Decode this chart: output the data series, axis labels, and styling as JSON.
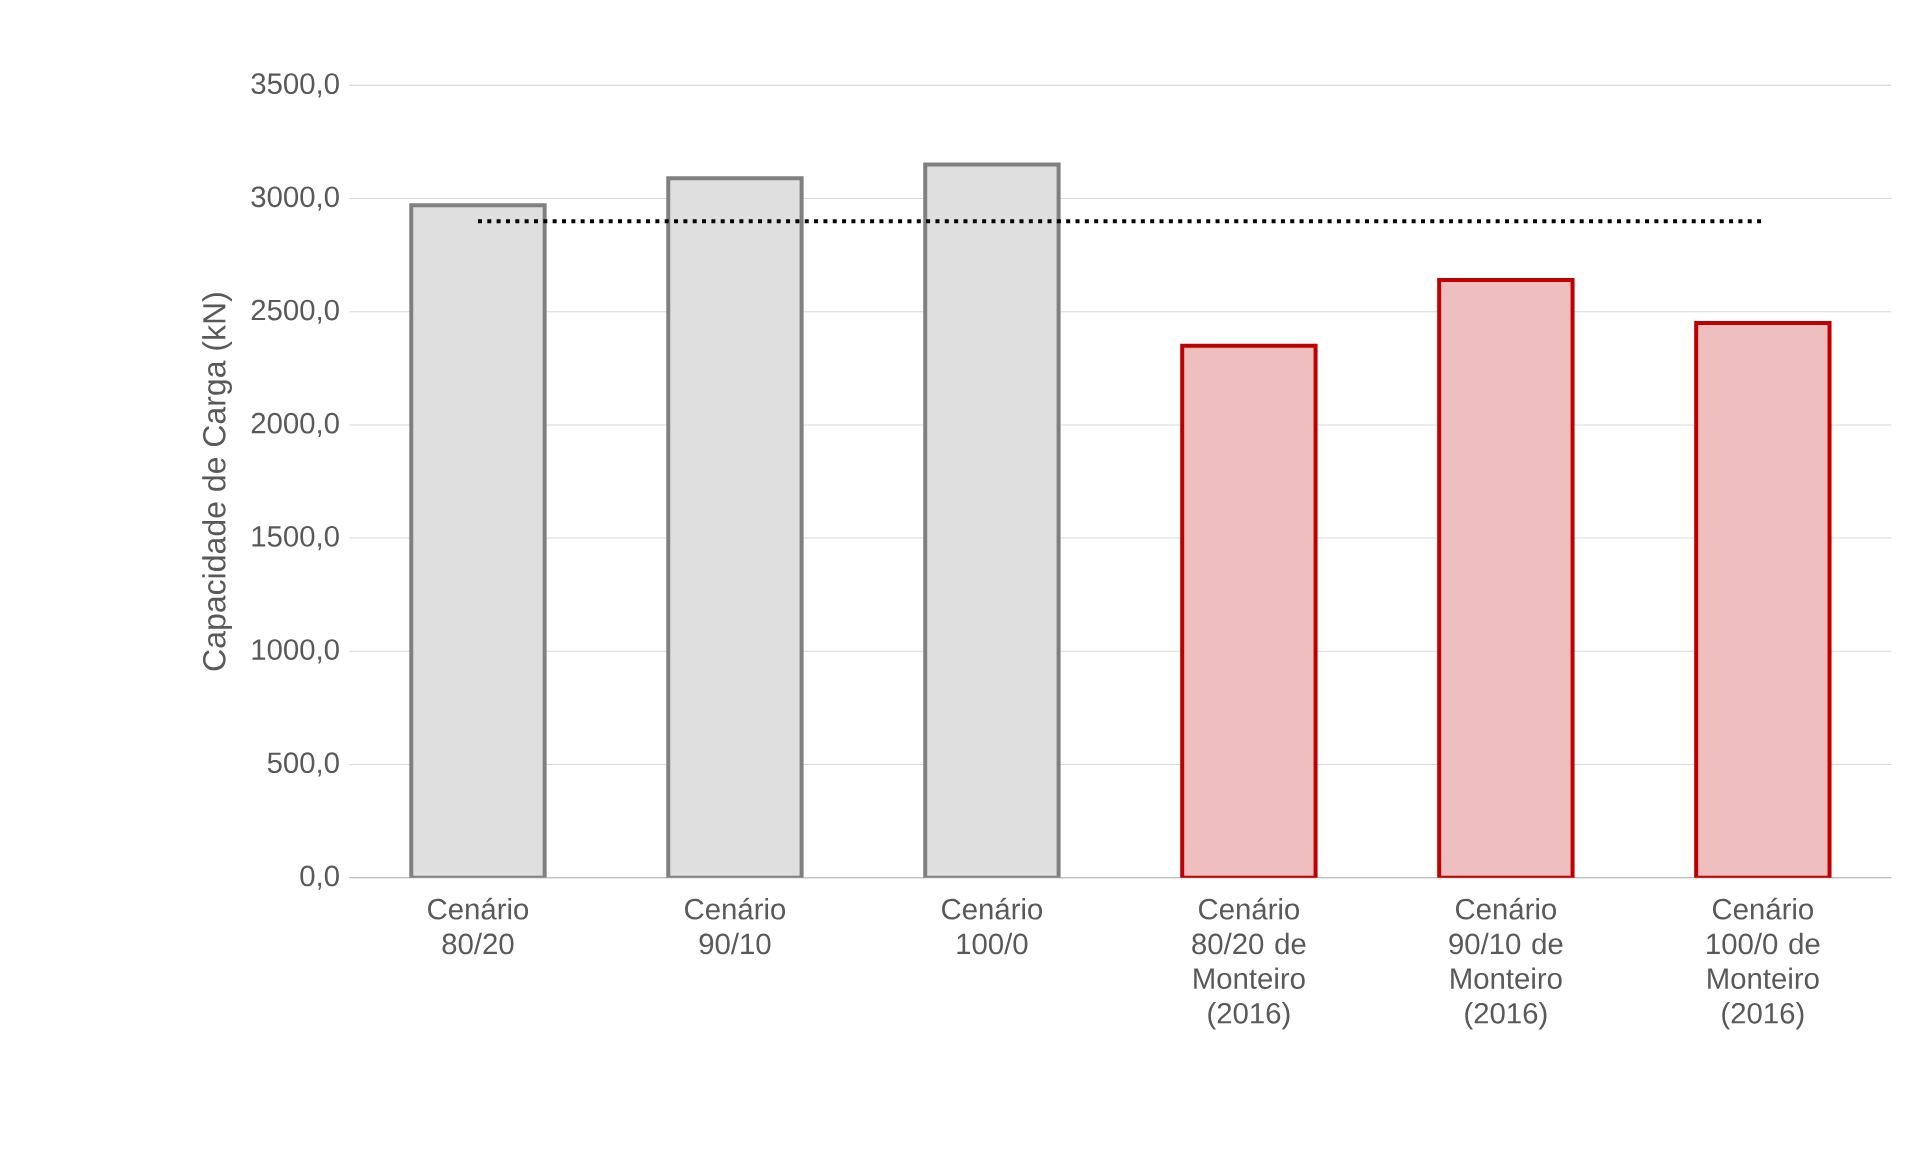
{
  "chart_data": {
    "type": "bar",
    "ylabel": "Capacidade de Carga (kN)",
    "categories": [
      "Cenário 80/20",
      "Cenário 90/10",
      "Cenário 100/0",
      "Cenário 80/20 de Monteiro (2016)",
      "Cenário 90/10 de Monteiro (2016)",
      "Cenário 100/0 de Monteiro (2016)"
    ],
    "values": [
      2970,
      3090,
      3150,
      2350,
      2640,
      2450
    ],
    "colors": [
      "#808080",
      "#808080",
      "#808080",
      "#c00000",
      "#c00000",
      "#c00000"
    ],
    "ylim": [
      0,
      3500
    ],
    "yticks": [
      {
        "value": 0,
        "label": "0,0"
      },
      {
        "value": 500,
        "label": "500,0"
      },
      {
        "value": 1000,
        "label": "1000,0"
      },
      {
        "value": 1500,
        "label": "1500,0"
      },
      {
        "value": 2000,
        "label": "2000,0"
      },
      {
        "value": 2500,
        "label": "2500,0"
      },
      {
        "value": 3000,
        "label": "3000,0"
      },
      {
        "value": 3500,
        "label": "3500,0"
      }
    ],
    "grid": "y",
    "ref_lines": [
      {
        "axis": "y",
        "value": 2900,
        "color": "#000000",
        "line_style": "dotted"
      }
    ]
  }
}
